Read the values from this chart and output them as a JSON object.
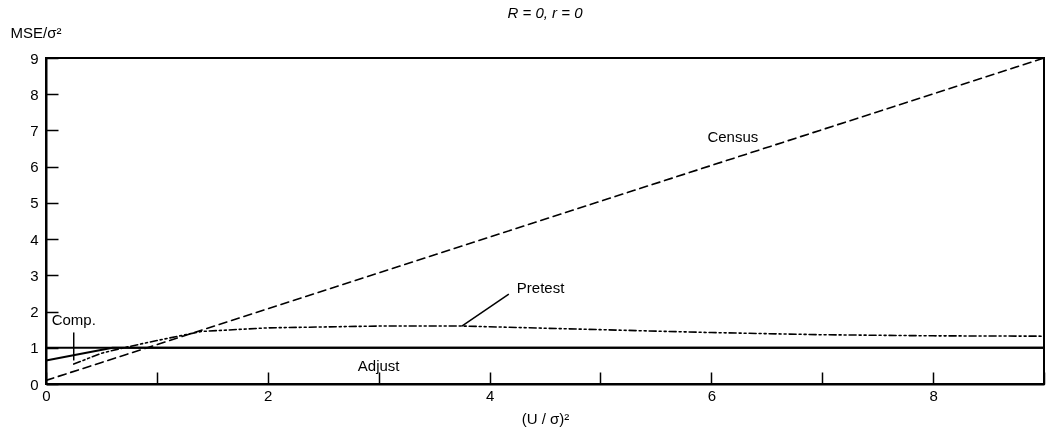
{
  "chart_data": {
    "type": "line",
    "title": "R = 0,  r = 0",
    "xlabel": "(U / σ)²",
    "ylabel": "MSE/σ²",
    "xlim": [
      0,
      9
    ],
    "ylim": [
      0,
      9
    ],
    "xticks": [
      0,
      {
        "value": 1,
        "label": null
      },
      2,
      {
        "value": 3,
        "label": null
      },
      4,
      {
        "value": 5,
        "label": null
      },
      6,
      {
        "value": 7,
        "label": null
      },
      8,
      {
        "value": 9,
        "label": null
      }
    ],
    "yticks": [
      0,
      1,
      2,
      3,
      4,
      5,
      6,
      7,
      8,
      9
    ],
    "marker": "none",
    "series": [
      {
        "color": "#000000",
        "line_style": "dashed",
        "x": [
          0,
          9
        ],
        "values": [
          0.1,
          9
        ]
      },
      {
        "color": "#000000",
        "line_style": "dotted",
        "x": [
          0.25,
          0.5,
          0.7,
          1,
          1.4,
          2,
          3,
          3.75,
          5,
          6,
          7,
          8,
          9
        ],
        "values": [
          0.55,
          0.85,
          1.0,
          1.2,
          1.45,
          1.55,
          1.6,
          1.6,
          1.5,
          1.42,
          1.36,
          1.33,
          1.32
        ]
      },
      {
        "color": "#000000",
        "line_style": "solid",
        "x": [
          0,
          9
        ],
        "values": [
          1,
          1
        ]
      },
      {
        "color": "#000000",
        "line_style": "solid",
        "x": [
          0,
          0.6,
          9
        ],
        "values": [
          0.65,
          1,
          1
        ]
      }
    ],
    "annotations": [
      {
        "text": "Census",
        "x": 6.6,
        "y": 6.6
      },
      {
        "text": "Pretest",
        "x": 3.75,
        "y": 1.6
      },
      {
        "text": "Comp.",
        "x": 0.25,
        "y": 0.65
      },
      {
        "text": "Adjust",
        "x": 3,
        "y": 1
      }
    ]
  }
}
